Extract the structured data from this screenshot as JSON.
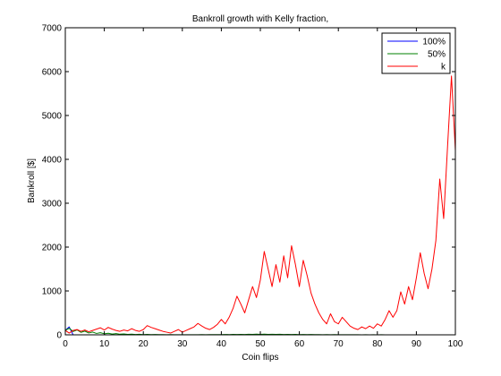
{
  "chart_data": {
    "type": "line",
    "title": "Bankroll growth with Kelly fraction,",
    "xlabel": "Coin flips",
    "ylabel": "Bankroll [$]",
    "xlim": [
      0,
      100
    ],
    "ylim": [
      0,
      7000
    ],
    "xticks": [
      0,
      10,
      20,
      30,
      40,
      50,
      60,
      70,
      80,
      90,
      100
    ],
    "yticks": [
      0,
      1000,
      2000,
      3000,
      4000,
      5000,
      6000,
      7000
    ],
    "xtick_labels": [
      "0",
      "10",
      "20",
      "30",
      "40",
      "50",
      "60",
      "70",
      "80",
      "90",
      "100"
    ],
    "ytick_labels": [
      "0",
      "1000",
      "2000",
      "3000",
      "4000",
      "5000",
      "6000",
      "7000"
    ],
    "grid": false,
    "legend_position": "top-right",
    "series": [
      {
        "name": "100%",
        "color": "#0000ff",
        "x": [
          0,
          1,
          2,
          3,
          4,
          5,
          6,
          7,
          8,
          9,
          10,
          11,
          12,
          13,
          14,
          15,
          16,
          17,
          18,
          19,
          20,
          21,
          22,
          23,
          24,
          25,
          26,
          27,
          28,
          29,
          30,
          31,
          32,
          33,
          34,
          35,
          36,
          37,
          38,
          39,
          40,
          41,
          42,
          43,
          44,
          45,
          46,
          47,
          48,
          49,
          50,
          51,
          52,
          53,
          54,
          55,
          56,
          57,
          58,
          59,
          60,
          61,
          62,
          63,
          64,
          65,
          66,
          67,
          68,
          69,
          70,
          71,
          72,
          73,
          74,
          75,
          76,
          77,
          78,
          79,
          80,
          81,
          82,
          83,
          84,
          85,
          86,
          87,
          88,
          89,
          90,
          91,
          92,
          93,
          94,
          95,
          96,
          97,
          98,
          99,
          100
        ],
        "values": [
          100,
          180,
          0,
          0,
          0,
          0,
          0,
          0,
          0,
          0,
          0,
          0,
          0,
          0,
          0,
          0,
          0,
          0,
          0,
          0,
          0,
          0,
          0,
          0,
          0,
          0,
          0,
          0,
          0,
          0,
          0,
          0,
          0,
          0,
          0,
          0,
          0,
          0,
          0,
          0,
          0,
          0,
          0,
          0,
          0,
          0,
          0,
          0,
          0,
          0,
          0,
          0,
          0,
          0,
          0,
          0,
          0,
          0,
          0,
          0,
          0,
          0,
          0,
          0,
          0,
          0,
          0,
          0,
          0,
          0,
          0,
          0,
          0,
          0,
          0,
          0,
          0,
          0,
          0,
          0,
          0,
          0,
          0,
          0,
          0,
          0,
          0,
          0,
          0,
          0,
          0,
          0,
          0,
          0,
          0,
          0,
          0,
          0,
          0,
          0,
          0
        ]
      },
      {
        "name": "50%",
        "color": "#008000",
        "x": [
          0,
          1,
          2,
          3,
          4,
          5,
          6,
          7,
          8,
          9,
          10,
          11,
          12,
          13,
          14,
          15,
          16,
          17,
          18,
          19,
          20,
          21,
          22,
          23,
          24,
          25,
          26,
          27,
          28,
          29,
          30,
          31,
          32,
          33,
          34,
          35,
          36,
          37,
          38,
          39,
          40,
          41,
          42,
          43,
          44,
          45,
          46,
          47,
          48,
          49,
          50,
          51,
          52,
          53,
          54,
          55,
          56,
          57,
          58,
          59,
          60,
          61,
          62,
          63,
          64,
          65,
          66,
          67,
          68,
          69,
          70,
          71,
          72,
          73,
          74,
          75,
          76,
          77,
          78,
          79,
          80,
          81,
          82,
          83,
          84,
          85,
          86,
          87,
          88,
          89,
          90,
          91,
          92,
          93,
          94,
          95,
          96,
          97,
          98,
          99,
          100
        ],
        "values": [
          100,
          150,
          75,
          112,
          56,
          84,
          42,
          63,
          32,
          48,
          24,
          36,
          18,
          27,
          14,
          20,
          10,
          15,
          8,
          12,
          6,
          9,
          5,
          7,
          4,
          5,
          3,
          4,
          2,
          3,
          2,
          3,
          2,
          3,
          2,
          4,
          3,
          5,
          4,
          6,
          5,
          8,
          6,
          9,
          7,
          11,
          8,
          12,
          9,
          14,
          11,
          15,
          10,
          13,
          9,
          12,
          8,
          11,
          7,
          9,
          6,
          8,
          5,
          7,
          4,
          5,
          3,
          4,
          3,
          4,
          2,
          3,
          2,
          3,
          2,
          2,
          1,
          2,
          1,
          2,
          1,
          2,
          1,
          1,
          1,
          1,
          1,
          1,
          1,
          1,
          1,
          1,
          1,
          1,
          1,
          1,
          1,
          1,
          1,
          1,
          1
        ]
      },
      {
        "name": "k",
        "color": "#ff0000",
        "x": [
          0,
          1,
          2,
          3,
          4,
          5,
          6,
          7,
          8,
          9,
          10,
          11,
          12,
          13,
          14,
          15,
          16,
          17,
          18,
          19,
          20,
          21,
          22,
          23,
          24,
          25,
          26,
          27,
          28,
          29,
          30,
          31,
          32,
          33,
          34,
          35,
          36,
          37,
          38,
          39,
          40,
          41,
          42,
          43,
          44,
          45,
          46,
          47,
          48,
          49,
          50,
          51,
          52,
          53,
          54,
          55,
          56,
          57,
          58,
          59,
          60,
          61,
          62,
          63,
          64,
          65,
          66,
          67,
          68,
          69,
          70,
          71,
          72,
          73,
          74,
          75,
          76,
          77,
          78,
          79,
          80,
          81,
          82,
          83,
          84,
          85,
          86,
          87,
          88,
          89,
          90,
          91,
          92,
          93,
          94,
          95,
          96,
          97,
          98,
          99,
          100
        ],
        "values": [
          100,
          40,
          100,
          120,
          80,
          110,
          70,
          100,
          130,
          160,
          110,
          170,
          130,
          100,
          80,
          110,
          90,
          140,
          100,
          80,
          120,
          210,
          170,
          140,
          110,
          80,
          60,
          40,
          80,
          120,
          60,
          100,
          140,
          180,
          260,
          200,
          150,
          120,
          170,
          240,
          350,
          250,
          400,
          600,
          880,
          700,
          500,
          800,
          1100,
          850,
          1250,
          1900,
          1500,
          1100,
          1600,
          1200,
          1800,
          1300,
          2030,
          1600,
          1100,
          1700,
          1350,
          950,
          700,
          500,
          350,
          250,
          480,
          300,
          250,
          400,
          300,
          200,
          150,
          120,
          180,
          140,
          200,
          150,
          250,
          200,
          350,
          550,
          400,
          550,
          980,
          700,
          1100,
          800,
          1300,
          1870,
          1400,
          1050,
          1500,
          2150,
          3550,
          2650,
          4300,
          5900,
          4200
        ]
      }
    ]
  }
}
